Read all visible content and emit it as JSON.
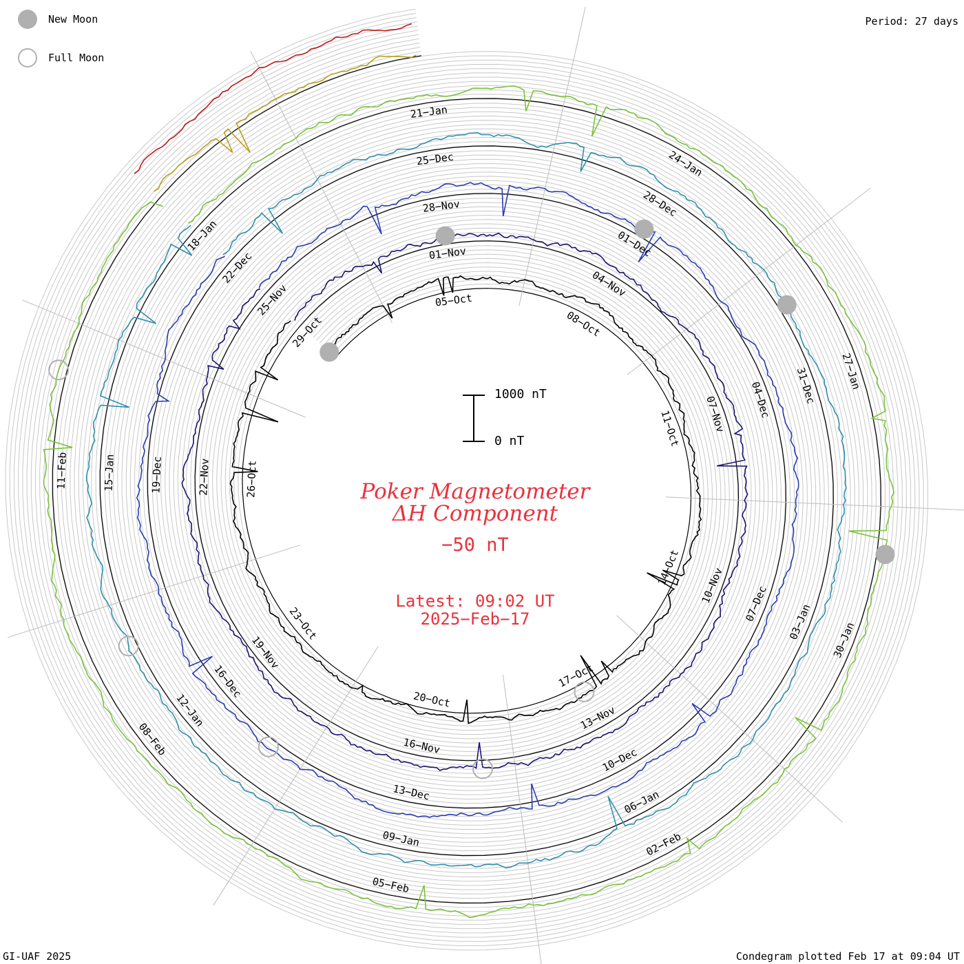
{
  "legend": {
    "new_moon": {
      "label": "New Moon",
      "color": "#b0b0b0"
    },
    "full_moon": {
      "label": "Full Moon",
      "color": "#b0b0b0"
    }
  },
  "period_label": "Period: 27 days",
  "footer_left": "GI-UAF 2025",
  "footer_right": "Condegram plotted Feb 17 at 09:04 UT",
  "title": {
    "line1": "Poker Magnetometer",
    "line2": "ΔH Component",
    "baseline": "−50 nT",
    "latest_line1": "Latest: 09:02 UT",
    "latest_line2": "2025−Feb−17",
    "color": "#e8323c"
  },
  "scale_bar": {
    "top_label": "1000 nT",
    "bottom_label": "0 nT",
    "value_nT": 1000
  },
  "chart_data": {
    "type": "line",
    "projection": "spiral condegram",
    "period_days": 27,
    "start_date": "2024-10-02",
    "end_date": "2025-02-17",
    "series": [
      {
        "color": "#000000",
        "start": "2024-10-02",
        "end": "2024-10-29"
      },
      {
        "color": "#1a1470",
        "start": "2024-10-29",
        "end": "2024-11-25"
      },
      {
        "color": "#2a3cb0",
        "start": "2024-11-25",
        "end": "2024-12-22"
      },
      {
        "color": "#2f8fb0",
        "start": "2024-12-22",
        "end": "2025-01-18"
      },
      {
        "color": "#7ac23a",
        "start": "2025-01-18",
        "end": "2025-02-14"
      },
      {
        "color": "#b8a018",
        "start": "2025-02-14",
        "end": "2025-02-17"
      },
      {
        "color": "#c01818",
        "start": "2025-02-14",
        "end": "2025-02-17"
      }
    ],
    "ring_date_labels": [
      [
        "05−Oct",
        "08−Oct",
        "11−Oct",
        "14−Oct",
        "17−Oct",
        "20−Oct",
        "23−Oct",
        "26−Oct",
        "29−Oct"
      ],
      [
        "01−Nov",
        "04−Nov",
        "07−Nov",
        "10−Nov",
        "13−Nov",
        "16−Nov",
        "19−Nov",
        "22−Nov",
        "25−Nov"
      ],
      [
        "28−Nov",
        "01−Dec",
        "04−Dec",
        "07−Dec",
        "10−Dec",
        "13−Dec",
        "16−Dec",
        "19−Dec",
        "22−Dec"
      ],
      [
        "25−Dec",
        "28−Dec",
        "31−Dec",
        "03−Jan",
        "06−Jan",
        "09−Jan",
        "12−Jan",
        "15−Jan",
        "18−Jan"
      ],
      [
        "21−Jan",
        "24−Jan",
        "27−Jan",
        "30−Jan",
        "02−Feb",
        "05−Feb",
        "08−Feb",
        "11−Feb"
      ]
    ],
    "new_moon_dates": [
      "2024-10-02",
      "2024-11-01",
      "2024-12-01",
      "2024-12-30",
      "2025-01-29"
    ],
    "full_moon_dates": [
      "2024-10-17",
      "2024-11-15",
      "2024-12-15",
      "2025-01-13",
      "2025-02-12"
    ],
    "baseline_nT": -50,
    "grid": true
  }
}
